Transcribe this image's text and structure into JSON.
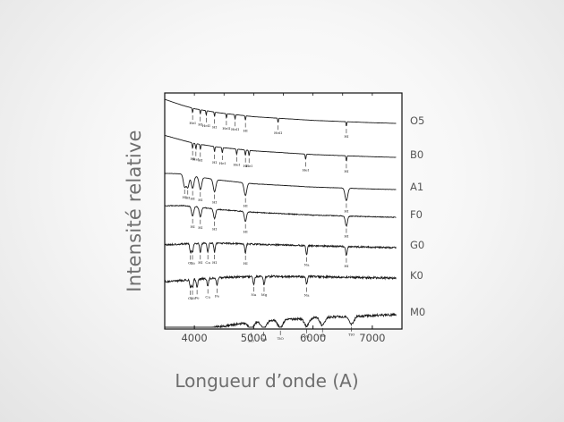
{
  "chart_data": {
    "type": "line",
    "ylabel": "Intensité relative",
    "xlabel": "Longueur d’onde (A)",
    "x_ticks": [
      4000,
      5000,
      6000,
      7000
    ],
    "x_tick_labels": [
      "4000",
      "5000",
      "6000",
      "7000"
    ],
    "xlim": [
      3500,
      7500
    ],
    "grid": false,
    "series": [
      {
        "name": "O5",
        "x": [
          3500,
          3800,
          4000,
          4400,
          5000,
          6000,
          7000,
          7400
        ],
        "y": [
          1.0,
          0.82,
          0.72,
          0.6,
          0.48,
          0.37,
          0.3,
          0.28
        ],
        "lines": [
          {
            "label": "HeI",
            "x": 3970
          },
          {
            "label": "HI",
            "x": 4100
          },
          {
            "label": "HeII",
            "x": 4200
          },
          {
            "label": "HI",
            "x": 4340
          },
          {
            "label": "HeII",
            "x": 4540
          },
          {
            "label": "HeII",
            "x": 4686
          },
          {
            "label": "HI",
            "x": 4861
          },
          {
            "label": "HeII",
            "x": 5411
          },
          {
            "label": "HI",
            "x": 6563
          }
        ]
      },
      {
        "name": "B0",
        "x": [
          3500,
          3800,
          4000,
          4400,
          5000,
          6000,
          7000,
          7400
        ],
        "y": [
          1.0,
          0.84,
          0.74,
          0.62,
          0.5,
          0.38,
          0.31,
          0.29
        ],
        "lines": [
          {
            "label": "HI",
            "x": 3970
          },
          {
            "label": "HeI",
            "x": 4026
          },
          {
            "label": "HI",
            "x": 4101
          },
          {
            "label": "HI",
            "x": 4340
          },
          {
            "label": "HeI",
            "x": 4471
          },
          {
            "label": "HeI",
            "x": 4713
          },
          {
            "label": "HI",
            "x": 4861
          },
          {
            "label": "HeI",
            "x": 4922
          },
          {
            "label": "HeI",
            "x": 5876
          },
          {
            "label": "HI",
            "x": 6563
          }
        ]
      },
      {
        "name": "A1",
        "x": [
          3500,
          3800,
          4000,
          4400,
          5000,
          6000,
          7000,
          7400
        ],
        "y": [
          0.9,
          0.88,
          0.8,
          0.66,
          0.52,
          0.4,
          0.33,
          0.31
        ],
        "lines": [
          {
            "label": "HI",
            "x": 3835
          },
          {
            "label": "HI",
            "x": 3889
          },
          {
            "label": "HI",
            "x": 3970
          },
          {
            "label": "HI",
            "x": 4101
          },
          {
            "label": "HI",
            "x": 4340
          },
          {
            "label": "HI",
            "x": 4861
          },
          {
            "label": "HI",
            "x": 6563
          }
        ]
      },
      {
        "name": "F0",
        "x": [
          3500,
          3800,
          4000,
          4400,
          5000,
          6000,
          7000,
          7400
        ],
        "y": [
          0.85,
          0.86,
          0.82,
          0.7,
          0.58,
          0.46,
          0.39,
          0.37
        ],
        "lines": [
          {
            "label": "HI",
            "x": 3970
          },
          {
            "label": "HI",
            "x": 4101
          },
          {
            "label": "HI",
            "x": 4340
          },
          {
            "label": "HI",
            "x": 4861
          },
          {
            "label": "HI",
            "x": 6563
          }
        ]
      },
      {
        "name": "G0",
        "x": [
          3500,
          3800,
          4000,
          4400,
          5000,
          6000,
          7000,
          7400
        ],
        "y": [
          0.7,
          0.75,
          0.78,
          0.8,
          0.74,
          0.64,
          0.56,
          0.53
        ],
        "lines": [
          {
            "label": "Ca",
            "x": 3934
          },
          {
            "label": "Ca",
            "x": 3968
          },
          {
            "label": "HI",
            "x": 4101
          },
          {
            "label": "Ca",
            "x": 4227
          },
          {
            "label": "HI",
            "x": 4340
          },
          {
            "label": "HI",
            "x": 4861
          },
          {
            "label": "Na",
            "x": 5893
          },
          {
            "label": "HI",
            "x": 6563
          }
        ]
      },
      {
        "name": "K0",
        "x": [
          3500,
          3800,
          4000,
          4400,
          5000,
          6000,
          7000,
          7400
        ],
        "y": [
          0.48,
          0.55,
          0.62,
          0.72,
          0.8,
          0.78,
          0.72,
          0.7
        ],
        "lines": [
          {
            "label": "Ca",
            "x": 3934
          },
          {
            "label": "Ca",
            "x": 3968
          },
          {
            "label": "Fe",
            "x": 4045
          },
          {
            "label": "Ca",
            "x": 4227
          },
          {
            "label": "Fe",
            "x": 4383
          },
          {
            "label": "Na",
            "x": 5000
          },
          {
            "label": "Mg",
            "x": 5175
          },
          {
            "label": "Na",
            "x": 5893
          }
        ]
      },
      {
        "name": "M0",
        "x": [
          3500,
          3800,
          4000,
          4400,
          5000,
          6000,
          7000,
          7400
        ],
        "y": [
          0.1,
          0.15,
          0.2,
          0.32,
          0.5,
          0.65,
          0.72,
          0.75
        ],
        "lines": [
          {
            "label": "TiO",
            "x": 4955
          },
          {
            "label": "TiO",
            "x": 5170
          },
          {
            "label": "TiO",
            "x": 5450
          },
          {
            "label": "Na",
            "x": 5893
          },
          {
            "label": "TiO",
            "x": 6160
          },
          {
            "label": "TiO",
            "x": 6650
          }
        ]
      }
    ]
  }
}
